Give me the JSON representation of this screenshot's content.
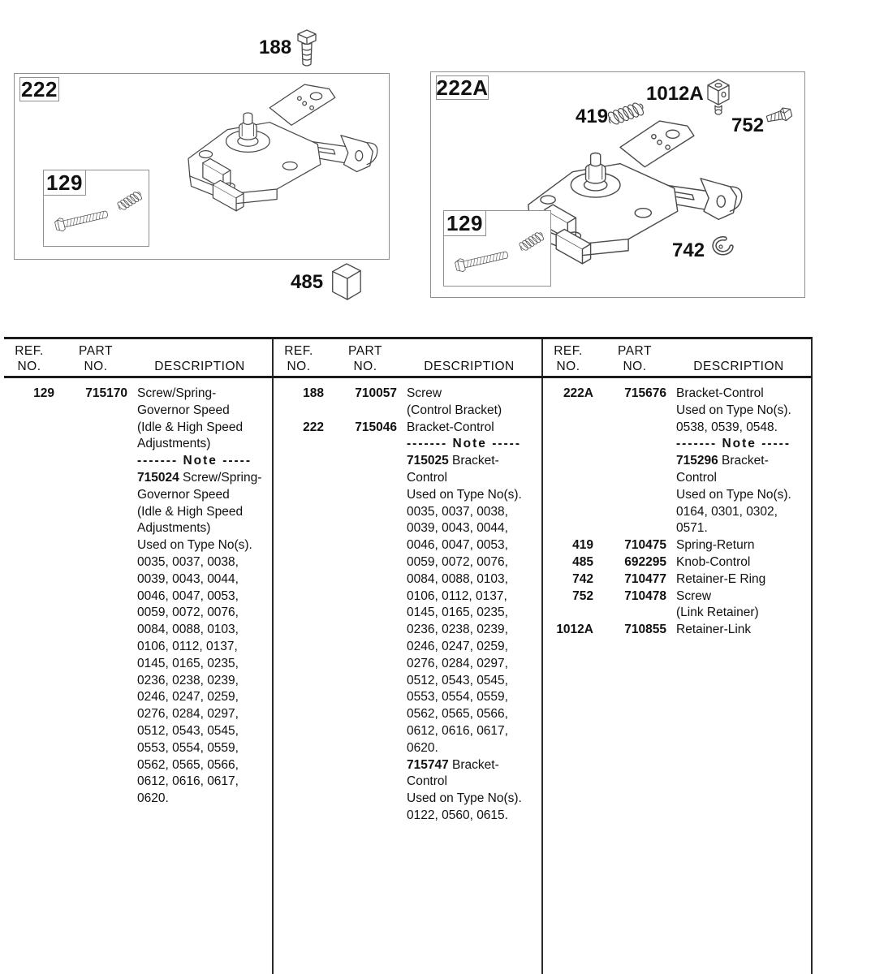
{
  "diagram": {
    "callout_188": {
      "ref": "188"
    },
    "callout_485": {
      "ref": "485"
    },
    "box_222": {
      "label": "222",
      "inset": {
        "label": "129"
      }
    },
    "box_222a": {
      "label": "222A",
      "inset": {
        "label": "129"
      },
      "callout_419": {
        "ref": "419"
      },
      "callout_1012a": {
        "ref": "1012A"
      },
      "callout_752": {
        "ref": "752"
      },
      "callout_742": {
        "ref": "742"
      }
    }
  },
  "table": {
    "headers": {
      "ref_line1": "REF.",
      "ref_line2": "NO.",
      "part_line1": "PART",
      "part_line2": "NO.",
      "description": "DESCRIPTION"
    },
    "columns": [
      {
        "entries": [
          {
            "ref": "129",
            "part": "715170",
            "lines": [
              {
                "t": "Screw/Spring-"
              },
              {
                "t": "Governor Speed"
              },
              {
                "t": "(Idle & High Speed"
              },
              {
                "t": "Adjustments)"
              },
              {
                "note": true,
                "t": "------- Note -----"
              },
              {
                "b": "715024",
                "t": " Screw/Spring-"
              },
              {
                "t": "Governor Speed"
              },
              {
                "t": "(Idle & High Speed"
              },
              {
                "t": "Adjustments)"
              },
              {
                "t": "Used on Type No(s)."
              },
              {
                "t": "0035, 0037, 0038,"
              },
              {
                "t": "0039, 0043, 0044,"
              },
              {
                "t": "0046, 0047, 0053,"
              },
              {
                "t": "0059, 0072, 0076,"
              },
              {
                "t": "0084, 0088, 0103,"
              },
              {
                "t": "0106, 0112, 0137,"
              },
              {
                "t": "0145, 0165, 0235,"
              },
              {
                "t": "0236, 0238, 0239,"
              },
              {
                "t": "0246, 0247, 0259,"
              },
              {
                "t": "0276, 0284, 0297,"
              },
              {
                "t": "0512, 0543, 0545,"
              },
              {
                "t": "0553, 0554, 0559,"
              },
              {
                "t": "0562, 0565, 0566,"
              },
              {
                "t": "0612, 0616, 0617,"
              },
              {
                "t": "0620."
              }
            ]
          }
        ]
      },
      {
        "entries": [
          {
            "ref": "188",
            "part": "710057",
            "lines": [
              {
                "t": "Screw"
              },
              {
                "t": "(Control Bracket)"
              }
            ]
          },
          {
            "ref": "222",
            "part": "715046",
            "lines": [
              {
                "t": "Bracket-Control"
              },
              {
                "note": true,
                "t": "------- Note -----"
              },
              {
                "b": "715025",
                "t": " Bracket-"
              },
              {
                "t": "Control"
              },
              {
                "t": "Used on Type No(s)."
              },
              {
                "t": "0035, 0037, 0038,"
              },
              {
                "t": "0039, 0043, 0044,"
              },
              {
                "t": "0046, 0047, 0053,"
              },
              {
                "t": "0059, 0072, 0076,"
              },
              {
                "t": "0084, 0088, 0103,"
              },
              {
                "t": "0106, 0112, 0137,"
              },
              {
                "t": "0145, 0165, 0235,"
              },
              {
                "t": "0236, 0238, 0239,"
              },
              {
                "t": "0246, 0247, 0259,"
              },
              {
                "t": "0276, 0284, 0297,"
              },
              {
                "t": "0512, 0543, 0545,"
              },
              {
                "t": "0553, 0554, 0559,"
              },
              {
                "t": "0562, 0565, 0566,"
              },
              {
                "t": "0612, 0616, 0617,"
              },
              {
                "t": "0620."
              },
              {
                "b": "715747",
                "t": " Bracket-"
              },
              {
                "t": "Control"
              },
              {
                "t": "Used on Type No(s)."
              },
              {
                "t": "0122, 0560, 0615."
              }
            ]
          }
        ]
      },
      {
        "entries": [
          {
            "ref": "222A",
            "part": "715676",
            "lines": [
              {
                "t": "Bracket-Control"
              },
              {
                "t": "Used on Type No(s)."
              },
              {
                "t": "0538, 0539, 0548."
              },
              {
                "note": true,
                "t": "------- Note -----"
              },
              {
                "b": "715296",
                "t": " Bracket-"
              },
              {
                "t": "Control"
              },
              {
                "t": "Used on Type No(s)."
              },
              {
                "t": "0164, 0301, 0302,"
              },
              {
                "t": "0571."
              }
            ]
          },
          {
            "ref": "419",
            "part": "710475",
            "lines": [
              {
                "t": "Spring-Return"
              }
            ]
          },
          {
            "ref": "485",
            "part": "692295",
            "lines": [
              {
                "t": "Knob-Control"
              }
            ]
          },
          {
            "ref": "742",
            "part": "710477",
            "lines": [
              {
                "t": "Retainer-E Ring"
              }
            ]
          },
          {
            "ref": "752",
            "part": "710478",
            "lines": [
              {
                "t": "Screw"
              },
              {
                "t": "(Link Retainer)"
              }
            ]
          },
          {
            "ref": "1012A",
            "part": "710855",
            "lines": [
              {
                "t": "Retainer-Link"
              }
            ]
          }
        ]
      }
    ]
  }
}
